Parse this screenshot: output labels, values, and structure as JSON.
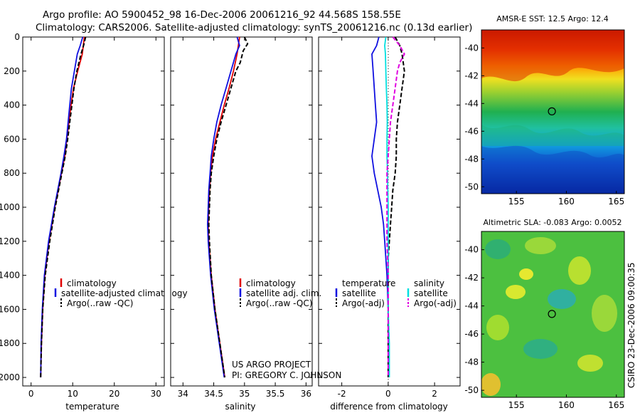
{
  "title_line1": "Argo profile: AO 5900452_98 16-Dec-2006 20061216_92 44.568S 158.55E",
  "title_line2": "Climatology: CARS2006. Satellite-adjusted climatology: synTS_20061216.nc (0.13d earlier)",
  "colors": {
    "red": "#e00000",
    "blue": "#1010e0",
    "black": "#000000",
    "cyan": "#00e0e0",
    "magenta": "#e000e0"
  },
  "chart_data": [
    {
      "type": "line",
      "id": "temperature",
      "xlabel": "temperature",
      "xlim": [
        -2,
        32
      ],
      "ylim": [
        2050,
        0
      ],
      "xticks": [
        "0",
        "10",
        "20",
        "30"
      ],
      "yticks": [
        "0",
        "200",
        "400",
        "600",
        "800",
        "1000",
        "1200",
        "1400",
        "1600",
        "1800",
        "2000"
      ],
      "legend": [
        "climatology",
        "satellite-adjusted climatology",
        "Argo(..raw -QC)"
      ],
      "series": [
        {
          "name": "climatology",
          "color": "red",
          "depth": [
            0,
            100,
            200,
            300,
            400,
            500,
            600,
            700,
            800,
            1000,
            1200,
            1400,
            1600,
            1800,
            2000
          ],
          "values": [
            12.8,
            12.3,
            11.2,
            10.2,
            9.6,
            9.1,
            8.6,
            8.1,
            7.3,
            5.7,
            4.3,
            3.3,
            2.8,
            2.5,
            2.3
          ]
        },
        {
          "name": "satellite-adjusted climatology",
          "color": "blue",
          "depth": [
            0,
            50,
            100,
            200,
            300,
            400,
            500,
            600,
            700,
            800,
            1000,
            1200,
            1400,
            1600,
            1800,
            2000
          ],
          "values": [
            12.4,
            11.8,
            11.1,
            10.4,
            9.7,
            9.3,
            8.9,
            8.5,
            7.9,
            7.2,
            5.6,
            4.2,
            3.2,
            2.7,
            2.4,
            2.3
          ]
        },
        {
          "name": "Argo(..raw -QC)",
          "color": "black",
          "dash": true,
          "depth": [
            0,
            50,
            100,
            200,
            300,
            400,
            500,
            600,
            700,
            800,
            1000,
            1200,
            1400,
            1600,
            1800,
            2000
          ],
          "values": [
            13.1,
            12.6,
            12.0,
            11.0,
            10.3,
            9.8,
            9.3,
            8.8,
            8.2,
            7.4,
            5.8,
            4.5,
            3.4,
            2.8,
            2.5,
            2.3
          ]
        }
      ]
    },
    {
      "type": "line",
      "id": "salinity",
      "xlabel": "salinity",
      "xlim": [
        33.8,
        36.1
      ],
      "ylim": [
        2050,
        0
      ],
      "xticks": [
        "34",
        "34.5",
        "35",
        "35.5",
        "36"
      ],
      "legend": [
        "climatology",
        "satellite adj. clim.",
        "Argo(..raw -QC)"
      ],
      "series": [
        {
          "name": "climatology",
          "color": "red",
          "depth": [
            0,
            100,
            200,
            300,
            400,
            500,
            600,
            700,
            800,
            900,
            1000,
            1100,
            1200,
            1400,
            1600,
            1800,
            2000
          ],
          "values": [
            34.92,
            34.88,
            34.82,
            34.75,
            34.67,
            34.6,
            34.53,
            34.48,
            34.45,
            34.43,
            34.42,
            34.41,
            34.42,
            34.46,
            34.52,
            34.6,
            34.68
          ]
        },
        {
          "name": "satellite adj. clim.",
          "color": "blue",
          "depth": [
            0,
            50,
            100,
            200,
            300,
            400,
            500,
            600,
            700,
            800,
            900,
            1000,
            1100,
            1200,
            1400,
            1600,
            1800,
            2000
          ],
          "values": [
            34.88,
            34.92,
            34.86,
            34.78,
            34.7,
            34.62,
            34.55,
            34.5,
            34.46,
            34.44,
            34.42,
            34.41,
            34.4,
            34.41,
            34.45,
            34.51,
            34.59,
            34.67
          ]
        },
        {
          "name": "Argo(..raw -QC)",
          "color": "black",
          "dash": true,
          "depth": [
            0,
            40,
            80,
            150,
            200,
            300,
            400,
            500,
            600,
            700,
            800,
            900,
            1000,
            1100,
            1200,
            1400,
            1600,
            1800,
            2000
          ],
          "values": [
            35.0,
            35.05,
            34.98,
            34.93,
            34.86,
            34.78,
            34.7,
            34.62,
            34.55,
            34.5,
            34.46,
            34.44,
            34.43,
            34.42,
            34.43,
            34.46,
            34.52,
            34.6,
            34.68
          ]
        }
      ]
    },
    {
      "type": "line",
      "id": "difference",
      "xlabel": "difference from climatology",
      "xlim": [
        -3,
        3.1
      ],
      "ylim": [
        2050,
        0
      ],
      "xticks": [
        "-2",
        "0",
        "2"
      ],
      "legend_left_title": "temperature",
      "legend_right_title": "salinity",
      "legend_left": [
        "satellite",
        "Argo(-adj)"
      ],
      "legend_right": [
        "satellite",
        "Argo(-adj)"
      ],
      "series": [
        {
          "name": "temperature satellite",
          "color": "blue",
          "depth": [
            0,
            50,
            100,
            200,
            300,
            400,
            500,
            600,
            700,
            800,
            900,
            1000,
            1100,
            1200,
            1300,
            1400,
            1600,
            1800,
            2000
          ],
          "values": [
            -0.4,
            -0.5,
            -0.7,
            -0.65,
            -0.6,
            -0.55,
            -0.5,
            -0.6,
            -0.7,
            -0.6,
            -0.45,
            -0.3,
            -0.2,
            -0.15,
            -0.1,
            -0.05,
            0.0,
            0.0,
            0.0
          ]
        },
        {
          "name": "temperature Argo(-adj)",
          "color": "black",
          "dash": true,
          "depth": [
            0,
            50,
            100,
            200,
            300,
            400,
            500,
            600,
            700,
            800,
            900,
            1000,
            1100,
            1200,
            1300,
            1400,
            1600,
            1800,
            2000
          ],
          "values": [
            0.3,
            0.5,
            0.6,
            0.7,
            0.6,
            0.5,
            0.4,
            0.35,
            0.35,
            0.3,
            0.2,
            0.15,
            0.1,
            0.05,
            0.0,
            0.0,
            0.0,
            0.0,
            0.0
          ]
        },
        {
          "name": "salinity satellite",
          "color": "cyan",
          "depth": [
            0,
            50,
            100,
            200,
            300,
            400,
            500,
            600,
            700,
            800,
            1000,
            1200,
            1400,
            1600,
            1800,
            2000
          ],
          "values": [
            -0.1,
            -0.15,
            -0.12,
            -0.1,
            -0.08,
            -0.05,
            -0.04,
            -0.05,
            -0.05,
            -0.03,
            0.0,
            0.0,
            0.0,
            0.0,
            0.05,
            0.05
          ]
        },
        {
          "name": "salinity Argo(-adj)",
          "color": "magenta",
          "dash": true,
          "depth": [
            0,
            50,
            100,
            150,
            200,
            300,
            400,
            500,
            600,
            700,
            800,
            1000,
            1200,
            1400,
            1600,
            1800,
            2000
          ],
          "values": [
            0.2,
            0.5,
            0.7,
            0.5,
            0.4,
            0.3,
            0.2,
            0.1,
            0.05,
            0.0,
            -0.05,
            -0.05,
            -0.05,
            0.0,
            0.0,
            0.0,
            0.0
          ]
        }
      ]
    },
    {
      "type": "heatmap",
      "id": "sst_map",
      "title": "AMSR-E SST: 12.5 Argo: 12.4",
      "xticks": [
        "155",
        "160",
        "165"
      ],
      "yticks": [
        "-40",
        "-42",
        "-44",
        "-46",
        "-48",
        "-50"
      ],
      "xlim": [
        151.5,
        165.8
      ],
      "ylim": [
        -50.5,
        -38.7
      ],
      "marker": {
        "lon": 158.55,
        "lat": -44.568
      }
    },
    {
      "type": "heatmap",
      "id": "sla_map",
      "title": "Altimetric SLA: -0.083 Argo: 0.0052",
      "xticks": [
        "155",
        "160",
        "165"
      ],
      "yticks": [
        "-40",
        "-42",
        "-44",
        "-46",
        "-48",
        "-50"
      ],
      "xlim": [
        151.5,
        165.8
      ],
      "ylim": [
        -50.5,
        -38.7
      ],
      "marker": {
        "lon": 158.55,
        "lat": -44.568
      }
    }
  ],
  "credit_line1": "US ARGO PROJECT",
  "credit_line2": "PI: GREGORY C. JOHNSON",
  "side_stamp": "CSIRO 23-Dec-2006 09:00:35"
}
